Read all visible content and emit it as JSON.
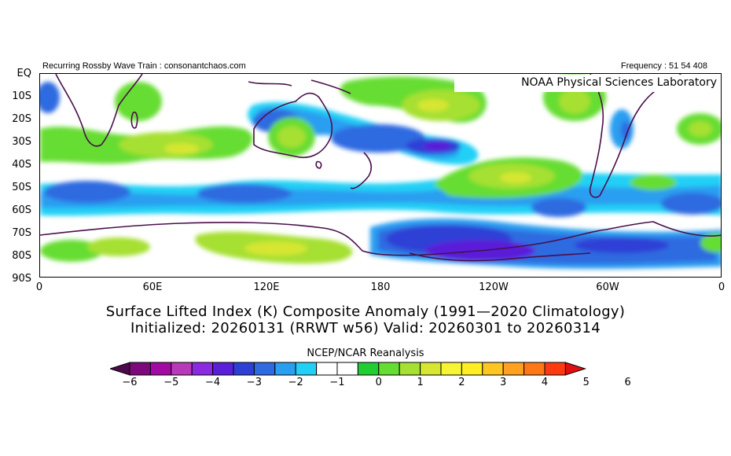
{
  "header": {
    "left": "Recurring Rossby Wave Train : consonantchaos.com",
    "right": "Frequency : 51 54 408"
  },
  "map": {
    "credit": "NOAA Physical Sciences Laboratory",
    "lat_labels": [
      "EQ",
      "10S",
      "20S",
      "30S",
      "40S",
      "50S",
      "60S",
      "70S",
      "80S",
      "90S"
    ],
    "lon_labels": [
      "0",
      "60E",
      "120E",
      "180",
      "120W",
      "60W",
      "0"
    ],
    "anomaly_field": [
      {
        "region": "southern Indian Ocean 30S",
        "value": 2
      },
      {
        "region": "Australia interior",
        "value": 2
      },
      {
        "region": "east of Australia / Coral Sea",
        "value": -2
      },
      {
        "region": "South Pacific near 150W 30S",
        "value": -3
      },
      {
        "region": "equatorial central Pacific",
        "value": 2
      },
      {
        "region": "southeast Pacific 40S",
        "value": 2
      },
      {
        "region": "Southern Ocean 60S",
        "value": -1
      },
      {
        "region": "Antarctic coast 80E-140E",
        "value": 2
      },
      {
        "region": "Antarctica Ross Sea sector",
        "value": -3
      },
      {
        "region": "Amundsen-Bellingshausen sector",
        "value": -3
      }
    ]
  },
  "title_line1": "Surface Lifted Index (K) Composite Anomaly (1991—2020 Climatology)",
  "title_line2": "Initialized: 20260131 (RRWT w56) Valid: 20260301 to 20260314",
  "colorbar": {
    "title": "NCEP/NCAR Reanalysis",
    "tick_labels": [
      "−6",
      "−5",
      "−4",
      "−3",
      "−2",
      "−1",
      "0",
      "1",
      "2",
      "3",
      "4",
      "5",
      "6"
    ],
    "colors": [
      "#4b0a4b",
      "#7d0a7d",
      "#a30aa3",
      "#b93ab9",
      "#8a2be2",
      "#5a1fd9",
      "#2e3fd6",
      "#2f6be0",
      "#2a9ef0",
      "#22d0f5",
      "#ffffff",
      "#ffffff",
      "#22cc33",
      "#66dd33",
      "#a6e033",
      "#d6e633",
      "#f5f533",
      "#ffee22",
      "#ffc622",
      "#ffa020",
      "#ff7818",
      "#ff3a10",
      "#e01010"
    ]
  }
}
